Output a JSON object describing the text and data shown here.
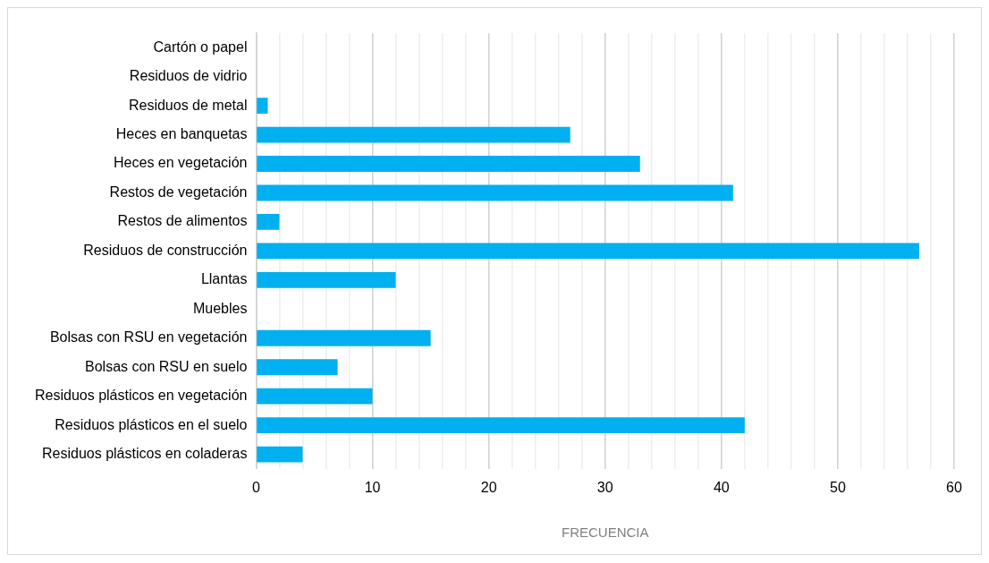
{
  "chart_data": {
    "type": "bar",
    "orientation": "horizontal",
    "xlabel": "FRECUENCIA",
    "categories": [
      "Cartón o papel",
      "Residuos de vidrio",
      "Residuos de metal",
      "Heces en banquetas",
      "Heces en vegetación",
      "Restos de vegetación",
      "Restos de alimentos",
      "Residuos de construcción",
      "Llantas",
      "Muebles",
      "Bolsas con RSU en vegetación",
      "Bolsas con RSU en suelo",
      "Residuos plásticos en vegetación",
      "Residuos plásticos en el suelo",
      "Residuos plásticos en coladeras"
    ],
    "values": [
      0,
      0,
      1,
      27,
      33,
      41,
      2,
      57,
      12,
      0,
      15,
      7,
      10,
      42,
      4
    ],
    "color": "#00b0f0",
    "xlim": [
      0,
      60
    ],
    "xticks": [
      0,
      {
        "value": 2,
        "label": null
      },
      {
        "value": 4,
        "label": null
      },
      {
        "value": 6,
        "label": null
      },
      {
        "value": 8,
        "label": null
      },
      10,
      {
        "value": 12,
        "label": null
      },
      {
        "value": 14,
        "label": null
      },
      {
        "value": 16,
        "label": null
      },
      {
        "value": 18,
        "label": null
      },
      20,
      {
        "value": 22,
        "label": null
      },
      {
        "value": 24,
        "label": null
      },
      {
        "value": 26,
        "label": null
      },
      {
        "value": 28,
        "label": null
      },
      30,
      {
        "value": 32,
        "label": null
      },
      {
        "value": 34,
        "label": null
      },
      {
        "value": 36,
        "label": null
      },
      {
        "value": 38,
        "label": null
      },
      40,
      {
        "value": 42,
        "label": null
      },
      {
        "value": 44,
        "label": null
      },
      {
        "value": 46,
        "label": null
      },
      {
        "value": 48,
        "label": null
      },
      50,
      {
        "value": 52,
        "label": null
      },
      {
        "value": 54,
        "label": null
      },
      {
        "value": 56,
        "label": null
      },
      {
        "value": 58,
        "label": null
      },
      60
    ],
    "grid": "x",
    "legend": false
  }
}
